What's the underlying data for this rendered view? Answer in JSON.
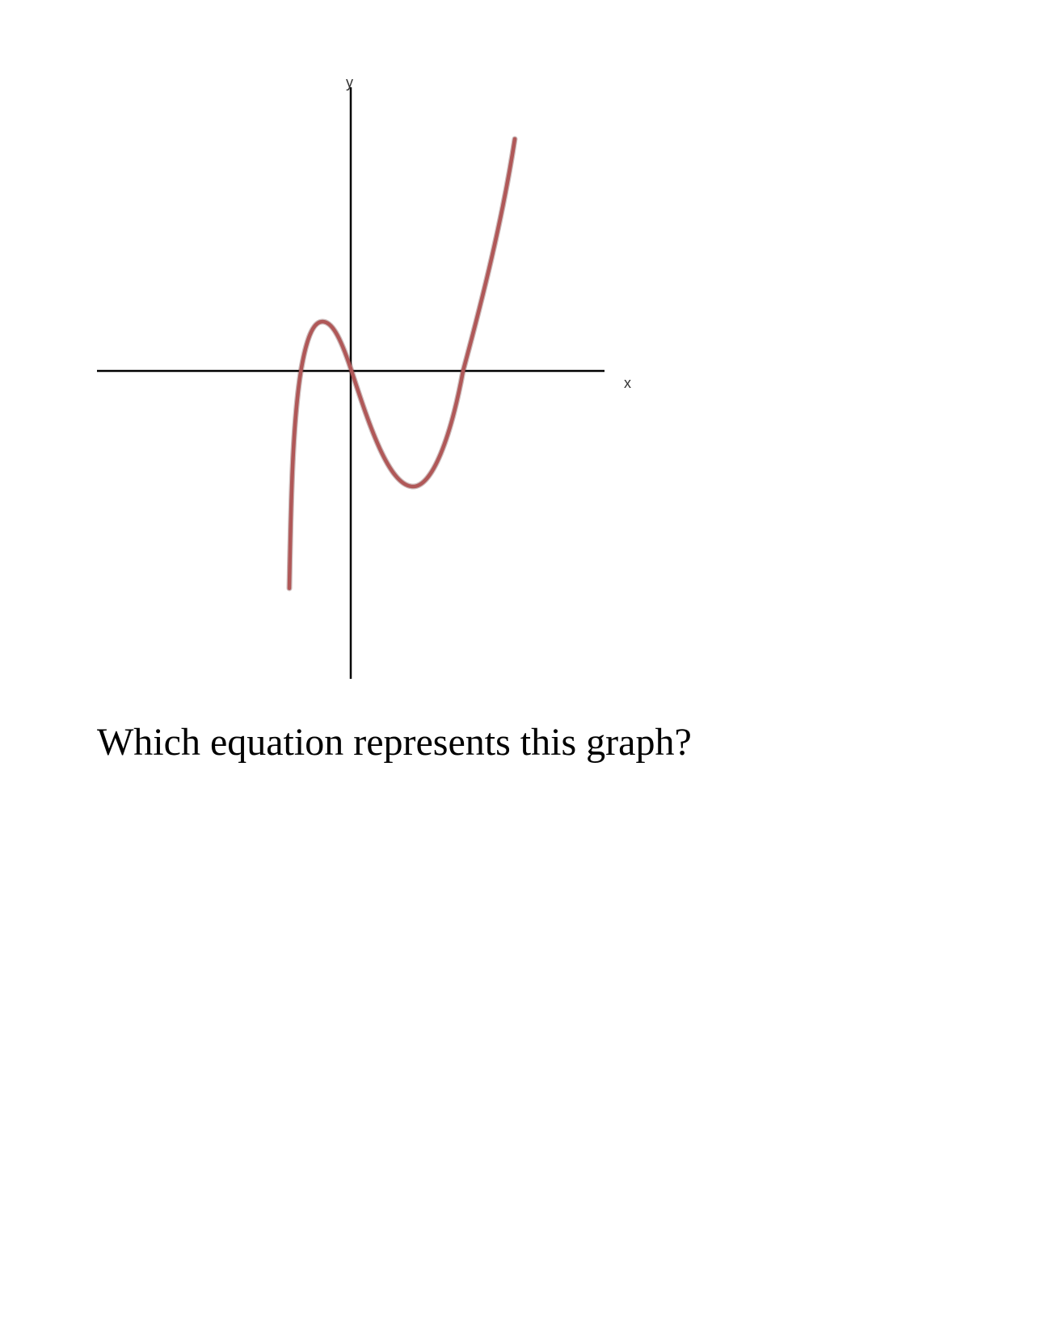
{
  "graph": {
    "x_axis_label": "x",
    "y_axis_label": "y",
    "curve_color": "#b05858",
    "axis_color": "#000000"
  },
  "question": {
    "text": "Which equation represents this graph?"
  }
}
